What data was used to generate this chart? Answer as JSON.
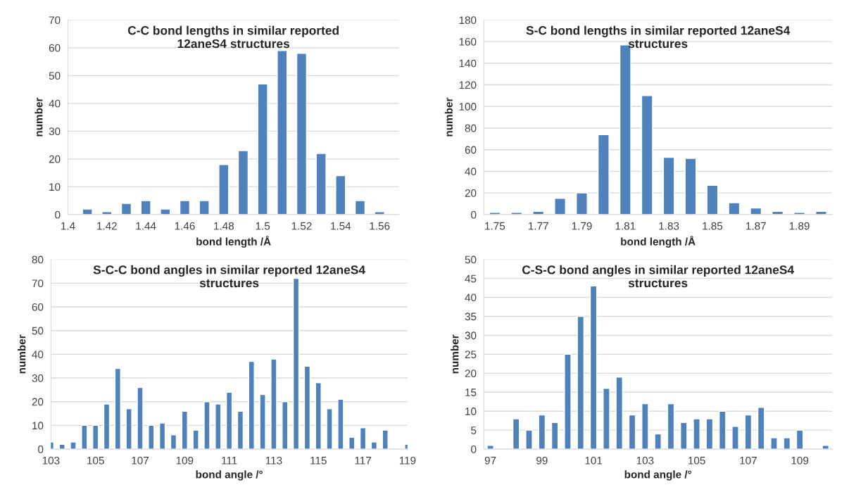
{
  "chart_data": [
    {
      "type": "bar",
      "title": "C-C bond lengths in similar reported\n12aneS4 structures",
      "xlabel": "bond length /Å",
      "ylabel": "number",
      "color": "#4f81bd",
      "grid": "y",
      "x": [
        1.41,
        1.42,
        1.43,
        1.44,
        1.45,
        1.46,
        1.47,
        1.48,
        1.49,
        1.5,
        1.51,
        1.52,
        1.53,
        1.54,
        1.55,
        1.56
      ],
      "values": [
        2,
        1,
        4,
        5,
        2,
        5,
        5,
        18,
        23,
        47,
        59,
        58,
        22,
        14,
        5,
        1
      ],
      "xlim": [
        1.4,
        1.57
      ],
      "xticks": [
        {
          "value": 1.4,
          "label": "1.4"
        },
        1.42,
        1.44,
        1.46,
        1.48,
        {
          "value": 1.5,
          "label": "1.5"
        },
        1.52,
        1.54,
        1.56
      ],
      "ylim": [
        0,
        70
      ],
      "yticks": [
        0,
        10,
        20,
        30,
        40,
        50,
        60,
        70
      ]
    },
    {
      "type": "bar",
      "title": "S-C bond lengths in similar reported 12aneS4\nstructures",
      "xlabel": "bond length /Å",
      "ylabel": "number",
      "color": "#4f81bd",
      "grid": "y",
      "x": [
        1.75,
        1.76,
        1.77,
        1.78,
        1.79,
        1.8,
        1.81,
        1.82,
        1.83,
        1.84,
        1.85,
        1.86,
        1.87,
        1.88,
        1.89,
        1.9
      ],
      "values": [
        2,
        2,
        3,
        15,
        20,
        74,
        157,
        110,
        53,
        52,
        27,
        11,
        6,
        3,
        2,
        3
      ],
      "xlim": [
        1.745,
        1.905
      ],
      "xticks": [
        1.75,
        1.77,
        1.79,
        1.81,
        1.83,
        1.85,
        1.87,
        1.89
      ],
      "ylim": [
        0,
        180
      ],
      "yticks": [
        0,
        20,
        40,
        60,
        80,
        100,
        120,
        140,
        160,
        180
      ]
    },
    {
      "type": "bar",
      "title": "S-C-C bond angles in similar reported 12aneS4\nstructures",
      "xlabel": "bond angle /°",
      "ylabel": "number",
      "color": "#4f81bd",
      "grid": "y",
      "x": [
        103,
        103.5,
        104,
        104.5,
        105,
        105.5,
        106,
        106.5,
        107,
        107.5,
        108,
        108.5,
        109,
        109.5,
        110,
        110.5,
        111,
        111.5,
        112,
        112.5,
        113,
        113.5,
        114,
        114.5,
        115,
        115.5,
        116,
        116.5,
        117,
        117.5,
        118,
        118.5,
        119
      ],
      "values": [
        3,
        2,
        3,
        10,
        10,
        19,
        34,
        17,
        26,
        10,
        11,
        6,
        16,
        8,
        20,
        19,
        24,
        16,
        37,
        23,
        38,
        20,
        72,
        35,
        28,
        17,
        21,
        5,
        9,
        3,
        8,
        null,
        2
      ],
      "xlim": [
        103,
        119
      ],
      "xticks": [
        103,
        105,
        107,
        109,
        111,
        113,
        115,
        117,
        119
      ],
      "ylim": [
        0,
        80
      ],
      "yticks": [
        0,
        10,
        20,
        30,
        40,
        50,
        60,
        70,
        80
      ]
    },
    {
      "type": "bar",
      "title": "C-S-C bond angles in similar reported 12aneS4\nstructures",
      "xlabel": "bond angle /°",
      "ylabel": "number",
      "color": "#4f81bd",
      "grid": "y",
      "x": [
        97,
        97.5,
        98,
        98.5,
        99,
        99.5,
        100,
        100.5,
        101,
        101.5,
        102,
        102.5,
        103,
        103.5,
        104,
        104.5,
        105,
        105.5,
        106,
        106.5,
        107,
        107.5,
        108,
        108.5,
        109,
        109.5,
        110
      ],
      "values": [
        1,
        null,
        8,
        5,
        9,
        7,
        25,
        35,
        43,
        16,
        19,
        9,
        12,
        4,
        12,
        7,
        8,
        8,
        10,
        6,
        9,
        11,
        3,
        3,
        5,
        null,
        1
      ],
      "xlim": [
        96.75,
        110.25
      ],
      "xticks": [
        97,
        99,
        101,
        103,
        105,
        107,
        109
      ],
      "ylim": [
        0,
        50
      ],
      "yticks": [
        0,
        5,
        10,
        15,
        20,
        25,
        30,
        35,
        40,
        45,
        50
      ]
    }
  ]
}
